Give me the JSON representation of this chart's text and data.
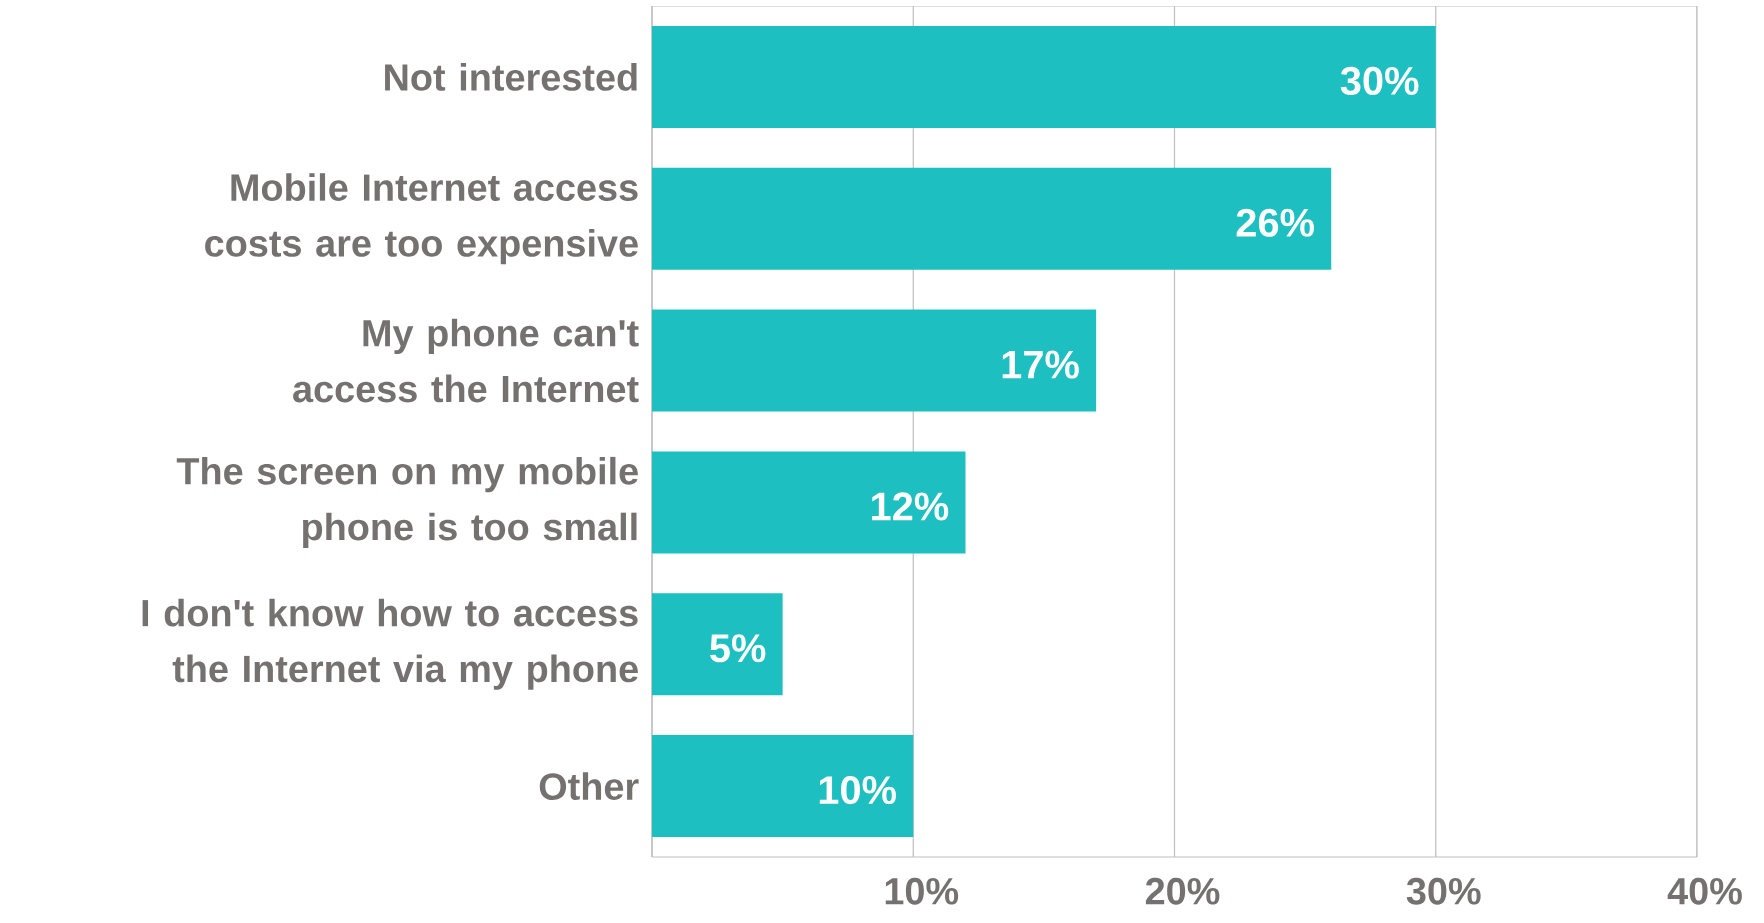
{
  "chart_data": {
    "type": "bar",
    "orientation": "horizontal",
    "categories": [
      "Not interested",
      "Mobile Internet access costs are too expensive",
      "My phone can't access the Internet",
      "The screen on my mobile phone is too small",
      "I don't know how to access the Internet via my phone",
      "Other"
    ],
    "values": [
      30,
      26,
      17,
      12,
      5,
      10
    ],
    "value_labels": [
      "30%",
      "26%",
      "17%",
      "12%",
      "5%",
      "10%"
    ],
    "color": "#1dbfc1",
    "xlim": [
      0,
      40
    ],
    "xticks": [
      {
        "value": 0,
        "label": null
      },
      {
        "value": 10,
        "label": "10%"
      },
      {
        "value": 20,
        "label": "20%"
      },
      {
        "value": 30,
        "label": "30%"
      },
      {
        "value": 40,
        "label": "40%"
      }
    ],
    "grid": "x"
  }
}
